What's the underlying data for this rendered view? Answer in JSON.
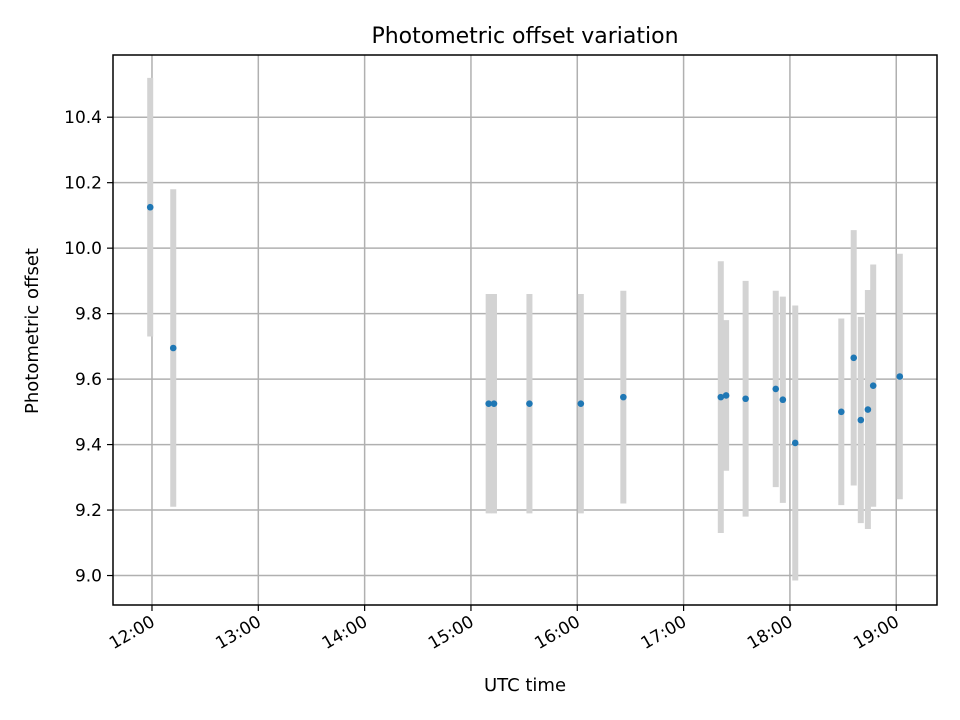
{
  "chart_data": {
    "type": "scatter",
    "title": "Photometric offset variation",
    "xlabel": "UTC time",
    "ylabel": "Photometric offset",
    "x_tick_labels": [
      "12:00",
      "13:00",
      "14:00",
      "15:00",
      "16:00",
      "17:00",
      "18:00",
      "19:00"
    ],
    "y_tick_labels": [
      "9.0",
      "9.2",
      "9.4",
      "9.6",
      "9.8",
      "10.0",
      "10.2",
      "10.4"
    ],
    "y_ticks": [
      9.0,
      9.2,
      9.4,
      9.6,
      9.8,
      10.0,
      10.2,
      10.4
    ],
    "xlim": [
      "11:38",
      "19:23"
    ],
    "ylim": [
      8.91,
      10.59
    ],
    "grid": true,
    "errorbar_color": "#d3d3d3",
    "marker_color": "#1f77b4",
    "points": [
      {
        "x": "11:59",
        "y": 10.125,
        "y_err": 0.395
      },
      {
        "x": "12:12",
        "y": 9.695,
        "y_err": 0.485
      },
      {
        "x": "15:10",
        "y": 9.525,
        "y_err": 0.335
      },
      {
        "x": "15:13",
        "y": 9.525,
        "y_err": 0.335
      },
      {
        "x": "15:33",
        "y": 9.525,
        "y_err": 0.335
      },
      {
        "x": "16:02",
        "y": 9.525,
        "y_err": 0.335
      },
      {
        "x": "16:26",
        "y": 9.545,
        "y_err": 0.325
      },
      {
        "x": "17:21",
        "y": 9.545,
        "y_err": 0.415
      },
      {
        "x": "17:24",
        "y": 9.55,
        "y_err": 0.23
      },
      {
        "x": "17:35",
        "y": 9.54,
        "y_err": 0.36
      },
      {
        "x": "17:52",
        "y": 9.57,
        "y_err": 0.3
      },
      {
        "x": "17:56",
        "y": 9.537,
        "y_err": 0.315
      },
      {
        "x": "18:03",
        "y": 9.405,
        "y_err": 0.42
      },
      {
        "x": "18:29",
        "y": 9.5,
        "y_err": 0.285
      },
      {
        "x": "18:36",
        "y": 9.665,
        "y_err": 0.39
      },
      {
        "x": "18:40",
        "y": 9.475,
        "y_err": 0.315
      },
      {
        "x": "18:44",
        "y": 9.507,
        "y_err": 0.365
      },
      {
        "x": "18:47",
        "y": 9.58,
        "y_err": 0.37
      },
      {
        "x": "19:02",
        "y": 9.608,
        "y_err": 0.375
      }
    ]
  }
}
